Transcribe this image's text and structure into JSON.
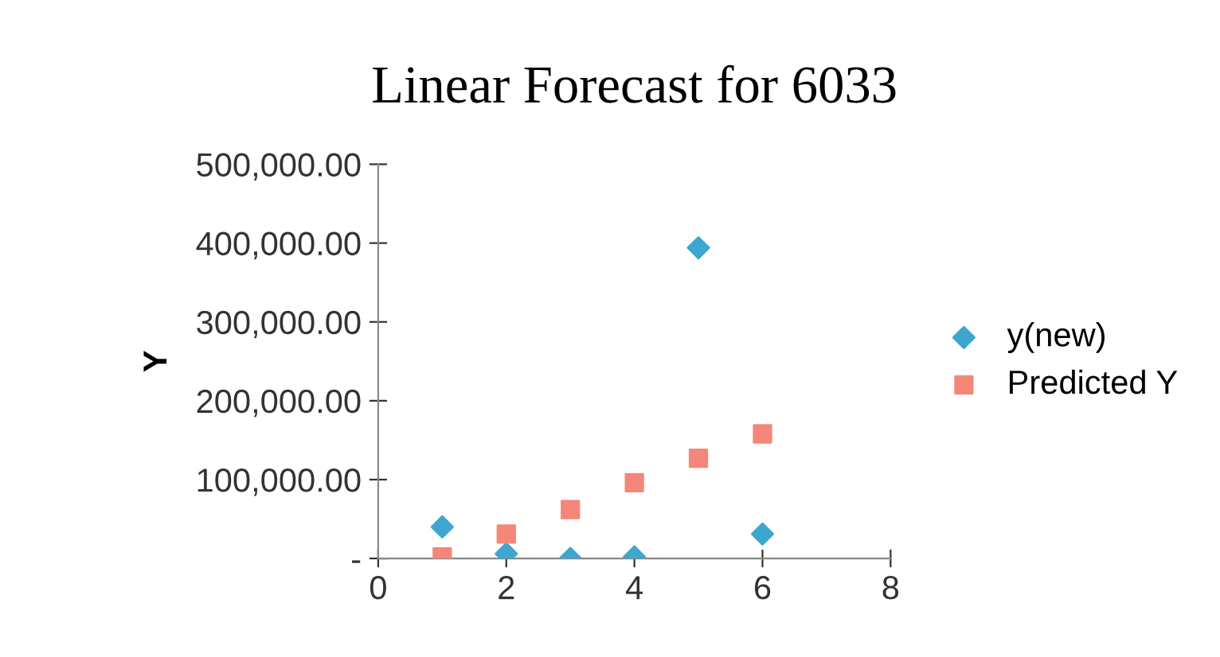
{
  "chart_data": {
    "type": "scatter",
    "title": "Linear Forecast for 6033",
    "ylabel": "Y",
    "x": [
      1,
      2,
      3,
      4,
      5,
      6
    ],
    "series": [
      {
        "name": "y(new)",
        "color": "#3ea6cf",
        "marker": "diamond",
        "values": [
          40000,
          6000,
          0,
          2000,
          394000,
          31000
        ]
      },
      {
        "name": "Predicted Y",
        "color": "#f4877a",
        "marker": "square",
        "values": [
          2000,
          31000,
          62000,
          96000,
          127000,
          158000
        ]
      }
    ],
    "xlim": [
      0,
      8
    ],
    "xticks": [
      0,
      2,
      4,
      6,
      8
    ],
    "ylim": [
      0,
      500000
    ],
    "yticks": [
      {
        "value": 0,
        "label": "-"
      },
      {
        "value": 100000,
        "label": "100,000.00"
      },
      {
        "value": 200000,
        "label": "200,000.00"
      },
      {
        "value": 300000,
        "label": "300,000.00"
      },
      {
        "value": 400000,
        "label": "400,000.00"
      },
      {
        "value": 500000,
        "label": "500,000.00"
      }
    ],
    "grid": false,
    "legend": "right"
  }
}
